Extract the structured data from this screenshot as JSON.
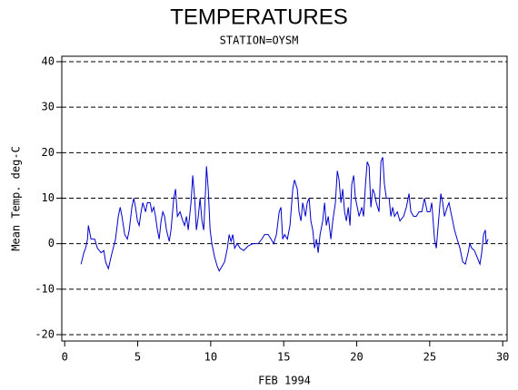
{
  "chart_data": {
    "type": "line",
    "title": "TEMPERATURES",
    "subtitle": "STATION=OYSM",
    "x_label": "FEB 1994",
    "y_label": "Mean Temp. deg-C",
    "xlim": [
      -0.2,
      30.3
    ],
    "xticks": [
      0,
      5,
      10,
      15,
      20,
      25,
      30
    ],
    "ylim": [
      -21.4,
      41.2
    ],
    "yticks": [
      -20,
      -10,
      0,
      10,
      20,
      30,
      40
    ],
    "grid": true,
    "series": [
      {
        "color": "#0000cc",
        "x": [
          1.12,
          1.31,
          1.43,
          1.56,
          1.62,
          1.8,
          2.05,
          2.24,
          2.49,
          2.68,
          2.8,
          2.99,
          3.24,
          3.48,
          3.67,
          3.8,
          3.92,
          4.11,
          4.29,
          4.42,
          4.6,
          4.73,
          4.85,
          4.98,
          5.1,
          5.23,
          5.35,
          5.54,
          5.66,
          5.85,
          5.97,
          6.1,
          6.22,
          6.35,
          6.47,
          6.6,
          6.72,
          6.84,
          6.97,
          7.16,
          7.28,
          7.47,
          7.59,
          7.72,
          7.9,
          8.09,
          8.21,
          8.34,
          8.46,
          8.65,
          8.77,
          8.9,
          9.02,
          9.15,
          9.27,
          9.4,
          9.52,
          9.65,
          9.71,
          9.83,
          9.96,
          10.08,
          10.27,
          10.45,
          10.58,
          10.77,
          10.95,
          11.14,
          11.26,
          11.39,
          11.51,
          11.64,
          11.82,
          12.01,
          12.26,
          12.57,
          12.88,
          13.25,
          13.5,
          13.69,
          13.94,
          14.13,
          14.31,
          14.5,
          14.69,
          14.81,
          14.93,
          15.06,
          15.25,
          15.43,
          15.62,
          15.74,
          15.93,
          16.05,
          16.18,
          16.3,
          16.49,
          16.61,
          16.74,
          16.86,
          16.99,
          17.11,
          17.24,
          17.36,
          17.49,
          17.67,
          17.8,
          17.92,
          18.05,
          18.23,
          18.36,
          18.54,
          18.67,
          18.79,
          18.92,
          19.04,
          19.17,
          19.29,
          19.42,
          19.54,
          19.66,
          19.79,
          19.91,
          20.04,
          20.16,
          20.35,
          20.47,
          20.6,
          20.72,
          20.85,
          20.97,
          21.1,
          21.22,
          21.34,
          21.53,
          21.66,
          21.78,
          21.9,
          22.03,
          22.22,
          22.34,
          22.46,
          22.59,
          22.78,
          22.96,
          23.21,
          23.4,
          23.58,
          23.71,
          23.9,
          24.08,
          24.27,
          24.46,
          24.64,
          24.83,
          25.02,
          25.14,
          25.33,
          25.45,
          25.58,
          25.76,
          25.89,
          26.01,
          26.2,
          26.32,
          26.51,
          26.7,
          26.88,
          27.07,
          27.26,
          27.44,
          27.63,
          27.75,
          27.88,
          28.06,
          28.25,
          28.44,
          28.56,
          28.69,
          28.81,
          28.87,
          29.0
        ],
        "values": [
          -4.5,
          -2,
          -1,
          1,
          4,
          1,
          1,
          -1,
          -2,
          -1.5,
          -4,
          -5.5,
          -2,
          1,
          6,
          8,
          6,
          2,
          1,
          3,
          8,
          10,
          8,
          5,
          4,
          7,
          9,
          7,
          9,
          9,
          7,
          8,
          6,
          3,
          1,
          5,
          7,
          6,
          3,
          0.5,
          3,
          10,
          12,
          6,
          7,
          5,
          4,
          6,
          3,
          9,
          15,
          10,
          3,
          6,
          10,
          5,
          3,
          12,
          17,
          12,
          3,
          0,
          -3,
          -5,
          -6,
          -5,
          -4,
          -1,
          2,
          0.5,
          2,
          -1,
          0,
          -1,
          -1.5,
          -0.5,
          0,
          0,
          1,
          2,
          2,
          1,
          0,
          2,
          7,
          8,
          1,
          2,
          1,
          4,
          12,
          14,
          12,
          7,
          5,
          9,
          6,
          9,
          10,
          5,
          3,
          -1,
          1,
          -2,
          2,
          5,
          9,
          4,
          6,
          1,
          5,
          9,
          16,
          14,
          9,
          12,
          7,
          5,
          8,
          4,
          13,
          15,
          10,
          8,
          6,
          8,
          6,
          13,
          18,
          17,
          8,
          12,
          11,
          9,
          7,
          18,
          19,
          13,
          10,
          10,
          6,
          8,
          6,
          7,
          5,
          6,
          8,
          11,
          7,
          6,
          6,
          7,
          7,
          10,
          7,
          7,
          9,
          1,
          -1,
          4,
          11,
          9,
          6,
          8,
          9,
          6,
          3,
          1,
          -1,
          -4,
          -4.5,
          -2,
          0,
          -1,
          -1.5,
          -3,
          -4.5,
          -2,
          2,
          3,
          0,
          1
        ]
      }
    ]
  }
}
